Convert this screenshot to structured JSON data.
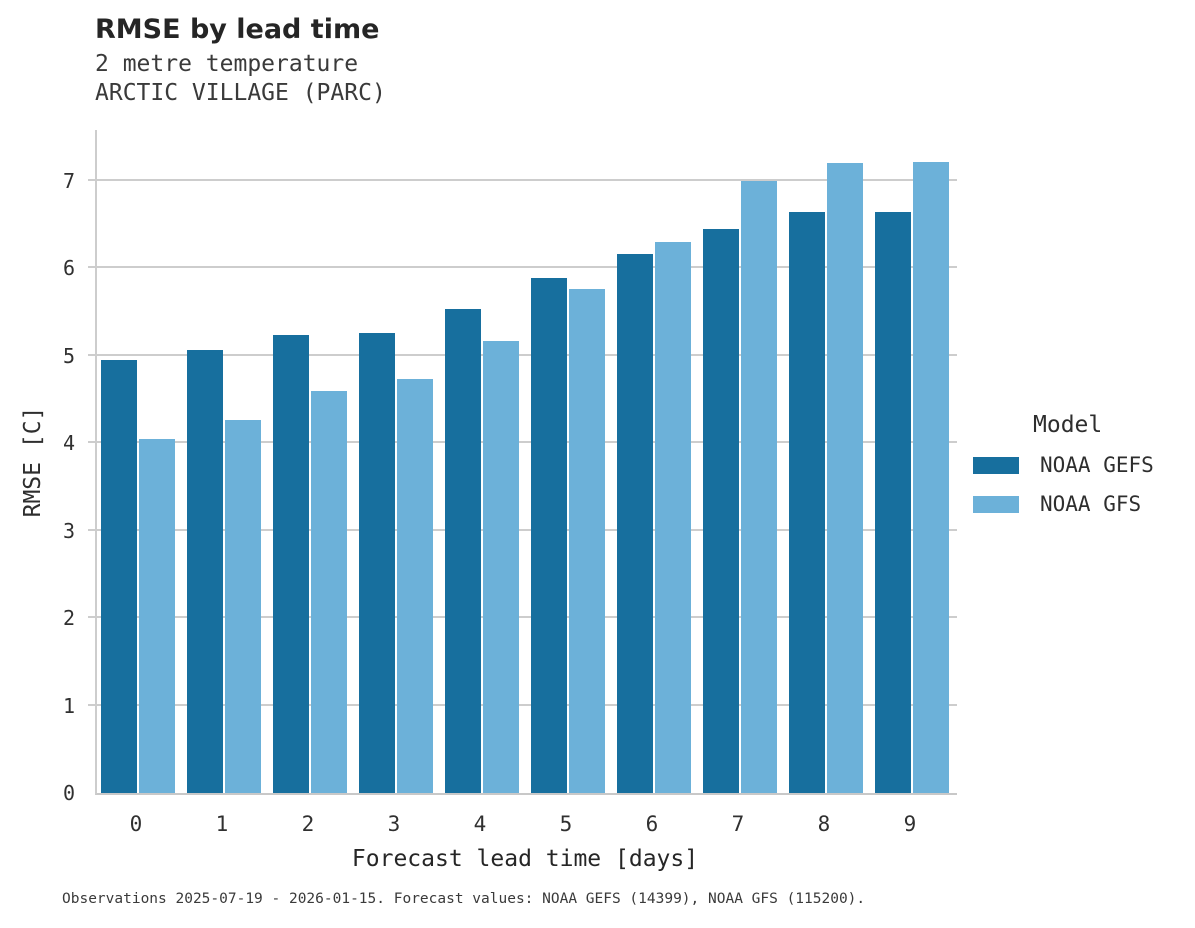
{
  "header": {
    "title": "RMSE by lead time",
    "subtitle_line1": "2 metre temperature",
    "subtitle_line2": "ARCTIC VILLAGE (PARC)"
  },
  "legend": {
    "title": "Model",
    "items": [
      {
        "label": "NOAA GEFS",
        "color": "#176F9E"
      },
      {
        "label": "NOAA GFS",
        "color": "#6CB1D9"
      }
    ]
  },
  "footer": {
    "text": "Observations 2025-07-19 - 2026-01-15. Forecast values: NOAA GEFS (14399), NOAA GFS (115200)."
  },
  "chart_data": {
    "type": "bar",
    "title": "RMSE by lead time",
    "subtitle": [
      "2 metre temperature",
      "ARCTIC VILLAGE (PARC)"
    ],
    "xlabel": "Forecast lead time [days]",
    "ylabel": "RMSE [C]",
    "categories": [
      "0",
      "1",
      "2",
      "3",
      "4",
      "5",
      "6",
      "7",
      "8",
      "9"
    ],
    "series": [
      {
        "name": "NOAA GEFS",
        "color": "#176F9E",
        "values": [
          4.95,
          5.07,
          5.24,
          5.26,
          5.53,
          5.89,
          6.16,
          6.45,
          6.64,
          6.64
        ]
      },
      {
        "name": "NOAA GFS",
        "color": "#6CB1D9",
        "values": [
          4.05,
          4.26,
          4.6,
          4.73,
          5.17,
          5.76,
          6.3,
          7.0,
          7.2,
          7.21
        ]
      }
    ],
    "ylim": [
      0,
      7.58
    ],
    "yticks": [
      0,
      1,
      2,
      3,
      4,
      5,
      6,
      7
    ],
    "grid": true,
    "gridline_color": "#cdcdcd",
    "legend_position": "right"
  }
}
